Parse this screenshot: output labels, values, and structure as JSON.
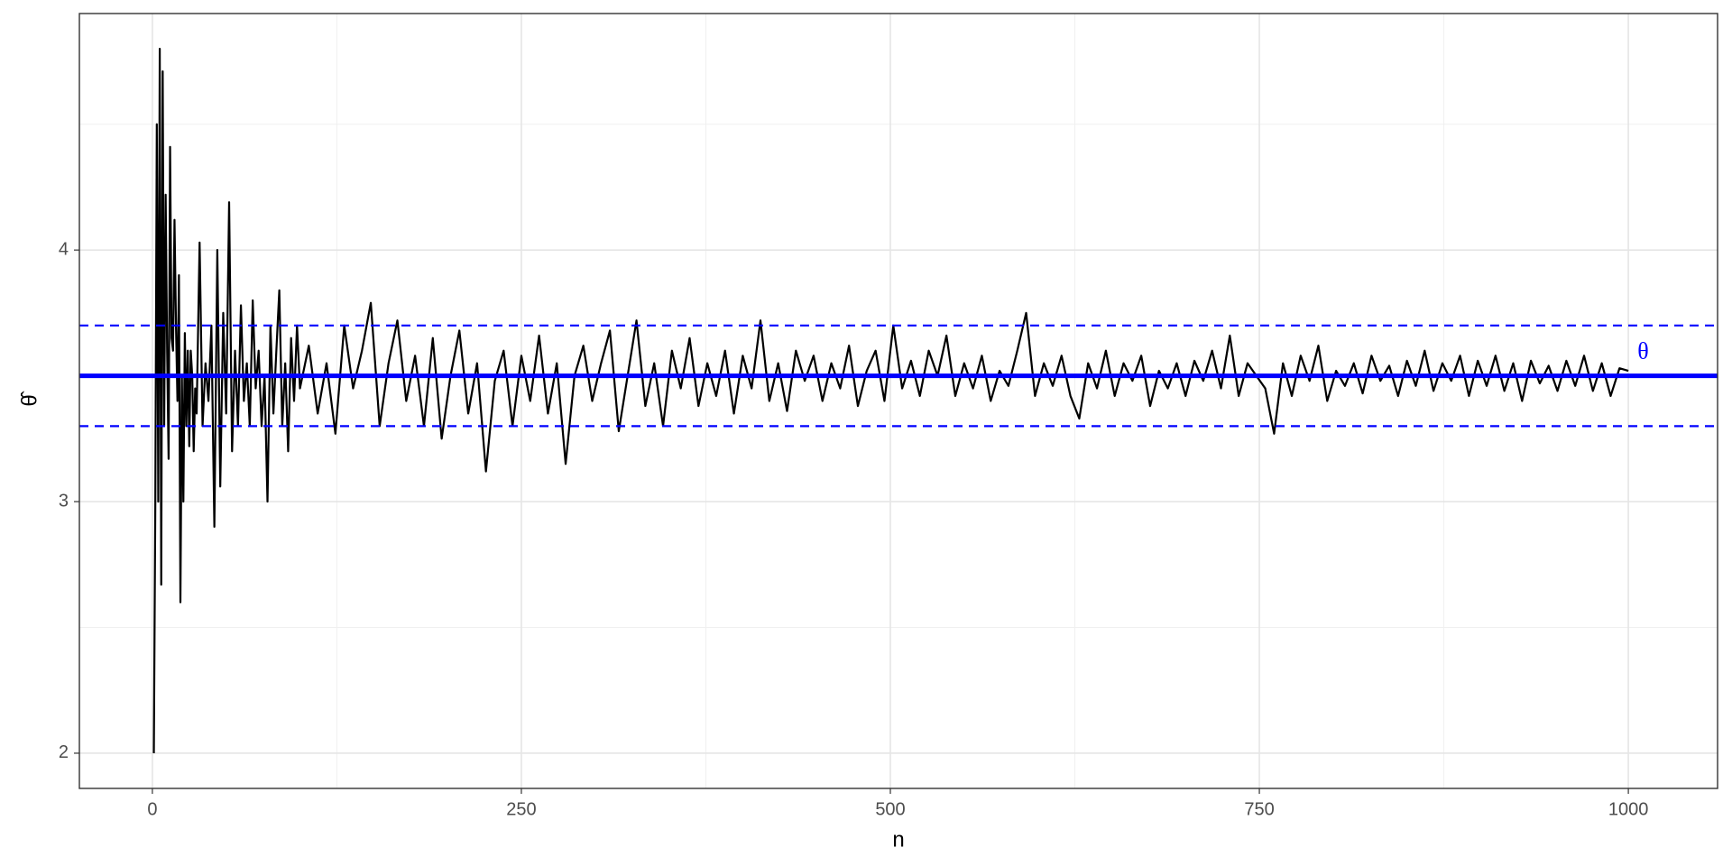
{
  "chart_data": {
    "type": "line",
    "xlabel": "n",
    "ylabel": "θ̂",
    "x": [
      1,
      2,
      3,
      4,
      5,
      6,
      7,
      8,
      9,
      10,
      11,
      12,
      13,
      14,
      15,
      16,
      17,
      18,
      19,
      20,
      21,
      22,
      23,
      24,
      25,
      26,
      27,
      28,
      29,
      30,
      32,
      34,
      36,
      38,
      40,
      42,
      44,
      46,
      48,
      50,
      52,
      54,
      56,
      58,
      60,
      62,
      64,
      66,
      68,
      70,
      72,
      74,
      76,
      78,
      80,
      82,
      84,
      86,
      88,
      90,
      92,
      94,
      96,
      98,
      100,
      106,
      112,
      118,
      124,
      130,
      136,
      142,
      148,
      154,
      160,
      166,
      172,
      178,
      184,
      190,
      196,
      202,
      208,
      214,
      220,
      226,
      232,
      238,
      244,
      250,
      256,
      262,
      268,
      274,
      280,
      286,
      292,
      298,
      304,
      310,
      316,
      322,
      328,
      334,
      340,
      346,
      352,
      358,
      364,
      370,
      376,
      382,
      388,
      394,
      400,
      406,
      412,
      418,
      424,
      430,
      436,
      442,
      448,
      454,
      460,
      466,
      472,
      478,
      484,
      490,
      496,
      502,
      508,
      514,
      520,
      526,
      532,
      538,
      544,
      550,
      556,
      562,
      568,
      574,
      580,
      586,
      592,
      598,
      604,
      610,
      616,
      622,
      628,
      634,
      640,
      646,
      652,
      658,
      664,
      670,
      676,
      682,
      688,
      694,
      700,
      706,
      712,
      718,
      724,
      730,
      736,
      742,
      748,
      754,
      760,
      766,
      772,
      778,
      784,
      790,
      796,
      802,
      808,
      814,
      820,
      826,
      832,
      838,
      844,
      850,
      856,
      862,
      868,
      874,
      880,
      886,
      892,
      898,
      904,
      910,
      916,
      922,
      928,
      934,
      940,
      946,
      952,
      958,
      964,
      970,
      976,
      982,
      988,
      994,
      1000
    ],
    "series": [
      {
        "color": "#000000",
        "values": [
          2.0,
          3.0,
          4.5,
          3.0,
          4.8,
          2.67,
          4.71,
          3.3,
          4.22,
          3.6,
          3.17,
          4.41,
          3.65,
          3.6,
          4.12,
          3.7,
          3.4,
          3.9,
          2.6,
          3.5,
          3.0,
          3.67,
          3.3,
          3.6,
          3.22,
          3.6,
          3.5,
          3.2,
          3.45,
          3.35,
          4.03,
          3.3,
          3.55,
          3.4,
          3.7,
          2.9,
          4.0,
          3.06,
          3.75,
          3.35,
          4.19,
          3.2,
          3.6,
          3.3,
          3.78,
          3.4,
          3.55,
          3.3,
          3.8,
          3.45,
          3.6,
          3.3,
          3.5,
          3.0,
          3.7,
          3.35,
          3.6,
          3.84,
          3.3,
          3.55,
          3.2,
          3.65,
          3.4,
          3.7,
          3.45,
          3.62,
          3.35,
          3.55,
          3.27,
          3.7,
          3.45,
          3.6,
          3.79,
          3.3,
          3.55,
          3.72,
          3.4,
          3.58,
          3.3,
          3.65,
          3.25,
          3.5,
          3.68,
          3.35,
          3.55,
          3.12,
          3.48,
          3.6,
          3.3,
          3.58,
          3.4,
          3.66,
          3.35,
          3.55,
          3.15,
          3.5,
          3.62,
          3.4,
          3.55,
          3.68,
          3.28,
          3.5,
          3.72,
          3.38,
          3.55,
          3.3,
          3.6,
          3.45,
          3.65,
          3.38,
          3.55,
          3.42,
          3.6,
          3.35,
          3.58,
          3.45,
          3.72,
          3.4,
          3.55,
          3.36,
          3.6,
          3.48,
          3.58,
          3.4,
          3.55,
          3.45,
          3.62,
          3.38,
          3.52,
          3.6,
          3.4,
          3.7,
          3.45,
          3.56,
          3.42,
          3.6,
          3.5,
          3.66,
          3.42,
          3.55,
          3.45,
          3.58,
          3.4,
          3.52,
          3.46,
          3.6,
          3.75,
          3.42,
          3.55,
          3.46,
          3.58,
          3.42,
          3.33,
          3.55,
          3.45,
          3.6,
          3.42,
          3.55,
          3.48,
          3.58,
          3.38,
          3.52,
          3.45,
          3.55,
          3.42,
          3.56,
          3.48,
          3.6,
          3.45,
          3.66,
          3.42,
          3.55,
          3.5,
          3.45,
          3.27,
          3.55,
          3.42,
          3.58,
          3.48,
          3.62,
          3.4,
          3.52,
          3.46,
          3.55,
          3.43,
          3.58,
          3.48,
          3.54,
          3.42,
          3.56,
          3.46,
          3.6,
          3.44,
          3.55,
          3.48,
          3.58,
          3.42,
          3.56,
          3.46,
          3.58,
          3.44,
          3.55,
          3.4,
          3.56,
          3.47,
          3.54,
          3.44,
          3.56,
          3.46,
          3.58,
          3.44,
          3.55,
          3.42,
          3.53,
          3.52
        ]
      }
    ],
    "reference_lines": [
      {
        "value": 3.5,
        "color": "#0000ff",
        "dashed": false
      },
      {
        "value": 3.7,
        "color": "#0000ff",
        "dashed": true
      },
      {
        "value": 3.3,
        "color": "#0000ff",
        "dashed": true
      }
    ],
    "annotation": {
      "text": "θ",
      "x": 1010,
      "y": 3.59,
      "color": "#0000ff"
    },
    "xlim": [
      -49.45,
      1060.45
    ],
    "ylim": [
      1.86,
      4.94
    ],
    "xticks": [
      0,
      250,
      500,
      750,
      1000
    ],
    "yticks": [
      2,
      3,
      4
    ],
    "xminor": [
      125,
      375,
      625,
      875
    ],
    "yminor": [
      2.5,
      3.5,
      4.5
    ],
    "grid": true
  }
}
